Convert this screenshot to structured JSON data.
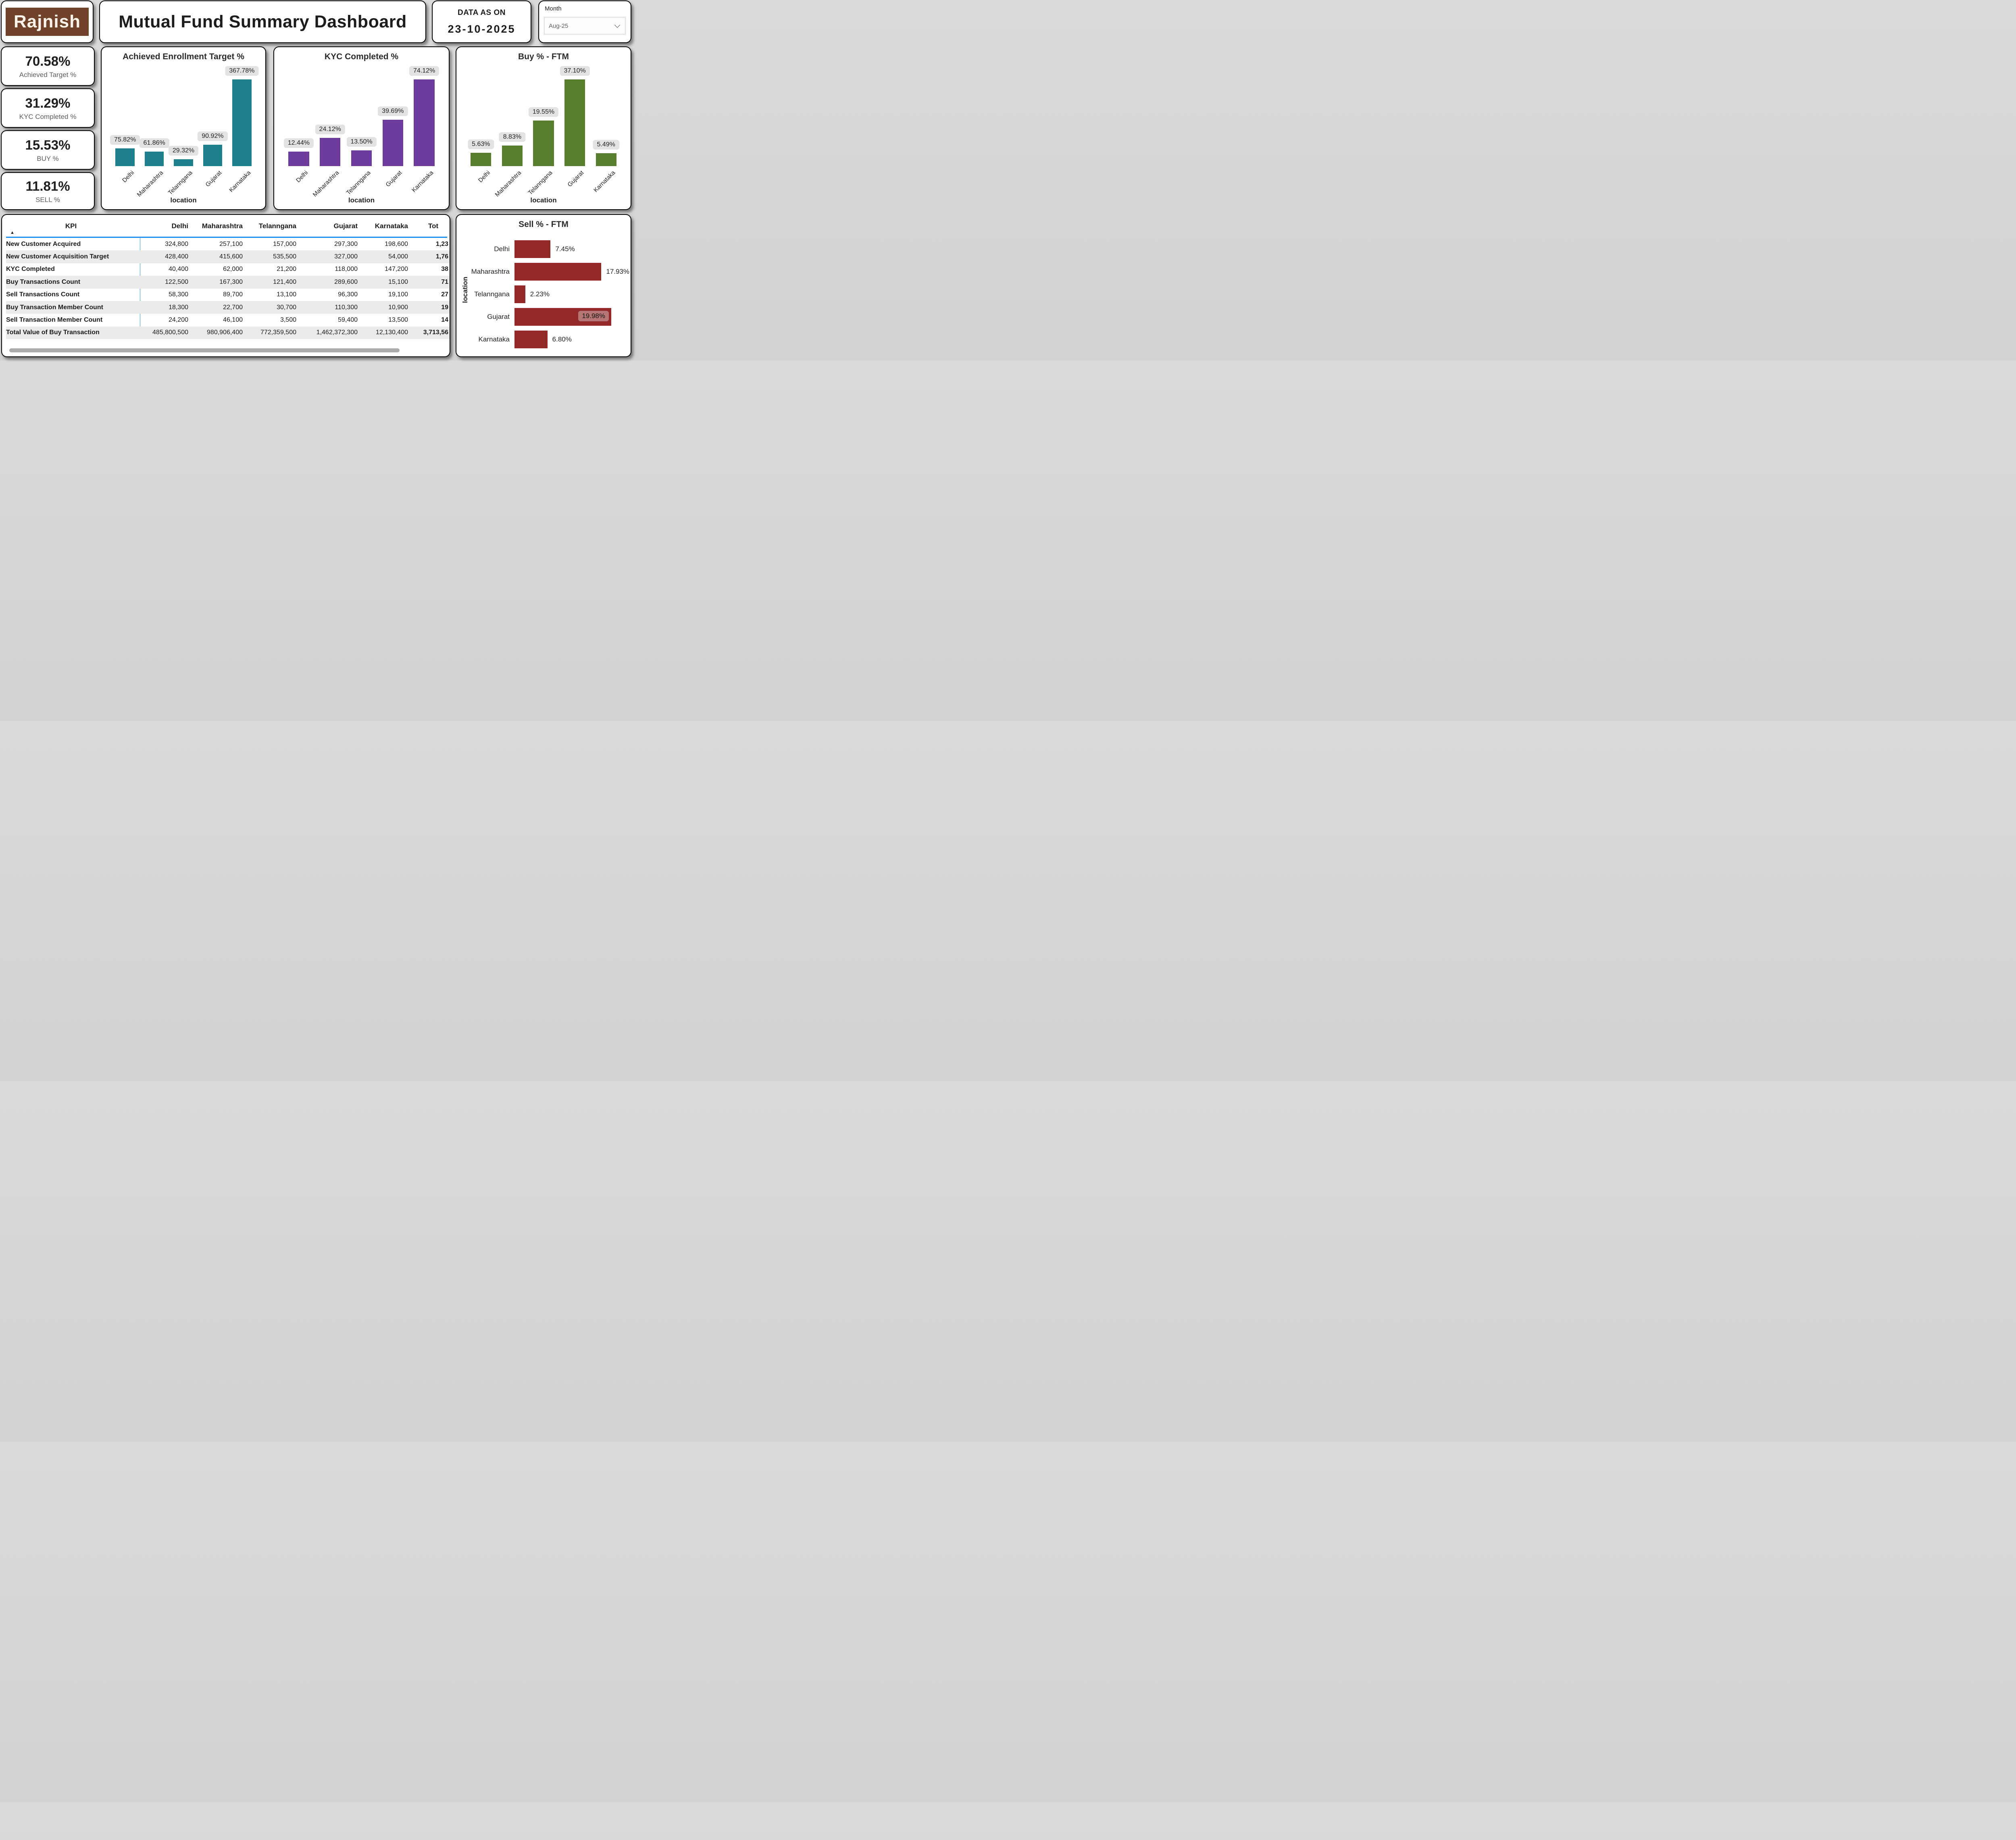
{
  "header": {
    "logo_text": "Rajnish",
    "title": "Mutual Fund Summary Dashboard",
    "data_as_on": {
      "label": "DATA AS ON",
      "date": "23-10-2025"
    },
    "month_filter": {
      "label": "Month",
      "selected": "Aug-25",
      "chevron_icon": "chevron-down"
    }
  },
  "kpi_cards": [
    {
      "value": "70.58%",
      "label": "Achieved Target %"
    },
    {
      "value": "31.29%",
      "label": "KYC Completed %"
    },
    {
      "value": "15.53%",
      "label": "BUY %"
    },
    {
      "value": "11.81%",
      "label": "SELL %"
    }
  ],
  "chart_data": [
    {
      "type": "bar",
      "title": "Achieved Enrollment Target %",
      "categories": [
        "Delhi",
        "Maharashtra",
        "Telanngana",
        "Gujarat",
        "Karnataka"
      ],
      "values": [
        75.82,
        61.86,
        29.32,
        90.92,
        367.78
      ],
      "labels": [
        "75.82%",
        "61.86%",
        "29.32%",
        "90.92%",
        "367.78%"
      ],
      "xlabel": "location",
      "bar_color": "#1d7e8c",
      "ylim": [
        0,
        367.78
      ],
      "grid": false,
      "legend": false
    },
    {
      "type": "bar",
      "title": "KYC Completed %",
      "categories": [
        "Delhi",
        "Maharashtra",
        "Telanngana",
        "Gujarat",
        "Karnataka"
      ],
      "values": [
        12.44,
        24.12,
        13.5,
        39.69,
        74.12
      ],
      "labels": [
        "12.44%",
        "24.12%",
        "13.50%",
        "39.69%",
        "74.12%"
      ],
      "xlabel": "location",
      "bar_color": "#6d3b9b",
      "ylim": [
        0,
        74.12
      ],
      "grid": false,
      "legend": false
    },
    {
      "type": "bar",
      "title": "Buy % - FTM",
      "categories": [
        "Delhi",
        "Maharashtra",
        "Telanngana",
        "Gujarat",
        "Karnataka"
      ],
      "values": [
        5.63,
        8.83,
        19.55,
        37.1,
        5.49
      ],
      "labels": [
        "5.63%",
        "8.83%",
        "19.55%",
        "37.10%",
        "5.49%"
      ],
      "xlabel": "location",
      "bar_color": "#567e2d",
      "ylim": [
        0,
        37.1
      ],
      "grid": false,
      "legend": false
    },
    {
      "type": "bar-horizontal",
      "title": "Sell % - FTM",
      "categories": [
        "Delhi",
        "Maharashtra",
        "Telanngana",
        "Gujarat",
        "Karnataka"
      ],
      "values": [
        7.45,
        17.93,
        2.23,
        19.98,
        6.8
      ],
      "labels": [
        "7.45%",
        "17.93%",
        "2.23%",
        "19.98%",
        "6.80%"
      ],
      "label_inside": [
        false,
        false,
        false,
        true,
        false
      ],
      "ylabel": "location",
      "bar_color": "#932829",
      "xlim": [
        0,
        19.98
      ],
      "grid": false,
      "legend": false
    }
  ],
  "table": {
    "sort_icon": "▲",
    "columns": [
      "KPI",
      "Delhi",
      "Maharashtra",
      "Telanngana",
      "Gujarat",
      "Karnataka",
      "Tot"
    ],
    "rows": [
      {
        "kpi": "New Customer Acquired",
        "values": [
          "324,800",
          "257,100",
          "157,000",
          "297,300",
          "198,600"
        ],
        "total_visible": "1,23"
      },
      {
        "kpi": "New Customer Acquisition Target",
        "values": [
          "428,400",
          "415,600",
          "535,500",
          "327,000",
          "54,000"
        ],
        "total_visible": "1,76"
      },
      {
        "kpi": "KYC Completed",
        "values": [
          "40,400",
          "62,000",
          "21,200",
          "118,000",
          "147,200"
        ],
        "total_visible": "38"
      },
      {
        "kpi": "Buy Transactions Count",
        "values": [
          "122,500",
          "167,300",
          "121,400",
          "289,600",
          "15,100"
        ],
        "total_visible": "71"
      },
      {
        "kpi": "Sell Transactions Count",
        "values": [
          "58,300",
          "89,700",
          "13,100",
          "96,300",
          "19,100"
        ],
        "total_visible": "27"
      },
      {
        "kpi": "Buy Transaction Member Count",
        "values": [
          "18,300",
          "22,700",
          "30,700",
          "110,300",
          "10,900"
        ],
        "total_visible": "19"
      },
      {
        "kpi": "Sell Transaction Member Count",
        "values": [
          "24,200",
          "46,100",
          "3,500",
          "59,400",
          "13,500"
        ],
        "total_visible": "14"
      },
      {
        "kpi": "Total Value of Buy Transaction",
        "values": [
          "485,800,500",
          "980,906,400",
          "772,359,500",
          "1,462,372,300",
          "12,130,400"
        ],
        "total_visible": "3,713,56"
      }
    ]
  },
  "colors": {
    "teal_bar": "#1d7e8c",
    "purple_bar": "#6d3b9b",
    "green_bar": "#567e2d",
    "red_bar": "#932829",
    "blue_line": "#1e8ff2",
    "stripe": "#ebebeb",
    "pill_bg": "#e3e3e3",
    "logo_bg": "#6f4229",
    "page_bg": "#d6d6d6"
  }
}
